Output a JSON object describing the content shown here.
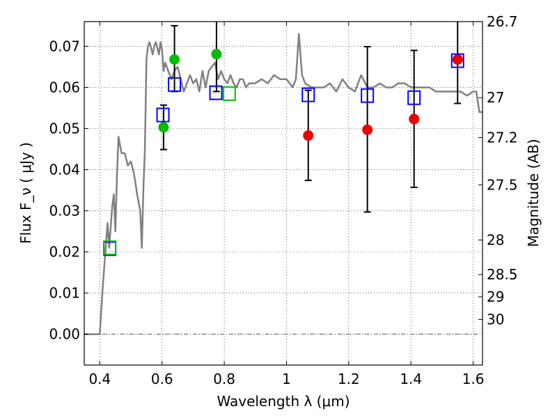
{
  "chart_data": {
    "type": "scatter",
    "xlabel": "Wavelength  λ (μm)",
    "ylabel": "Flux  F_ν  ( μJy )",
    "ylabel_right": "Magnitude (AB)",
    "xlim": [
      0.35,
      1.63
    ],
    "ylim": [
      -0.0075,
      0.076
    ],
    "grid": true,
    "x_ticks": [
      0.4,
      0.6,
      0.8,
      1.0,
      1.2,
      1.4,
      1.6
    ],
    "x_tick_labels": [
      "0.4",
      "0.6",
      "0.8",
      "1",
      "1.2",
      "1.4",
      "1.6"
    ],
    "y_ticks": [
      0.0,
      0.01,
      0.02,
      0.03,
      0.04,
      0.05,
      0.06,
      0.07
    ],
    "y_tick_labels": [
      "0.00",
      "0.01",
      "0.02",
      "0.03",
      "0.04",
      "0.05",
      "0.06",
      "0.07"
    ],
    "right_ticks": [
      {
        "label": "26.7",
        "flux": 0.076
      },
      {
        "label": "27",
        "flux": 0.0575
      },
      {
        "label": "27.2",
        "flux": 0.0478
      },
      {
        "label": "27.5",
        "flux": 0.0363
      },
      {
        "label": "28",
        "flux": 0.0229
      },
      {
        "label": "28.5",
        "flux": 0.0145
      },
      {
        "label": "29",
        "flux": 0.0091
      },
      {
        "label": "30",
        "flux": 0.0036
      }
    ],
    "colors": {
      "model": "#808080",
      "model_points": "#0000ff",
      "green_points": "#00bb00",
      "red_points": "#ee0000",
      "green_squares": "#00bb00",
      "errorbars": "#000000",
      "zero_line": "#555555"
    },
    "series": [
      {
        "kind": "line",
        "x": [
          0.35,
          0.4,
          0.41,
          0.42,
          0.425,
          0.43,
          0.44,
          0.445,
          0.45,
          0.455,
          0.46,
          0.465,
          0.47,
          0.48,
          0.49,
          0.5,
          0.51,
          0.52,
          0.53,
          0.535,
          0.54,
          0.545,
          0.55,
          0.555,
          0.56,
          0.57,
          0.575,
          0.58,
          0.59,
          0.595,
          0.6,
          0.605,
          0.61,
          0.62,
          0.63,
          0.64,
          0.65,
          0.66,
          0.67,
          0.68,
          0.69,
          0.7,
          0.71,
          0.72,
          0.73,
          0.74,
          0.75,
          0.76,
          0.77,
          0.78,
          0.79,
          0.8,
          0.81,
          0.82,
          0.83,
          0.84,
          0.85,
          0.86,
          0.87,
          0.88,
          0.9,
          0.92,
          0.94,
          0.96,
          0.98,
          1.0,
          1.02,
          1.03,
          1.04,
          1.05,
          1.06,
          1.08,
          1.1,
          1.12,
          1.14,
          1.16,
          1.18,
          1.2,
          1.22,
          1.24,
          1.26,
          1.28,
          1.3,
          1.32,
          1.34,
          1.36,
          1.38,
          1.4,
          1.42,
          1.44,
          1.46,
          1.48,
          1.5,
          1.52,
          1.54,
          1.56,
          1.58,
          1.6,
          1.61,
          1.62,
          1.63
        ],
        "y": [
          0.0,
          0.0,
          0.012,
          0.022,
          0.027,
          0.021,
          0.031,
          0.034,
          0.025,
          0.038,
          0.048,
          0.046,
          0.044,
          0.044,
          0.041,
          0.042,
          0.039,
          0.034,
          0.03,
          0.021,
          0.035,
          0.045,
          0.067,
          0.07,
          0.071,
          0.068,
          0.07,
          0.071,
          0.068,
          0.071,
          0.069,
          0.064,
          0.066,
          0.064,
          0.062,
          0.064,
          0.065,
          0.062,
          0.059,
          0.061,
          0.063,
          0.061,
          0.062,
          0.059,
          0.064,
          0.06,
          0.064,
          0.065,
          0.066,
          0.062,
          0.064,
          0.062,
          0.061,
          0.063,
          0.061,
          0.06,
          0.062,
          0.062,
          0.06,
          0.061,
          0.061,
          0.062,
          0.061,
          0.063,
          0.062,
          0.062,
          0.06,
          0.062,
          0.073,
          0.063,
          0.061,
          0.06,
          0.06,
          0.06,
          0.061,
          0.059,
          0.062,
          0.06,
          0.059,
          0.063,
          0.06,
          0.06,
          0.061,
          0.06,
          0.06,
          0.061,
          0.061,
          0.06,
          0.06,
          0.06,
          0.06,
          0.059,
          0.059,
          0.059,
          0.059,
          0.059,
          0.058,
          0.059,
          0.059,
          0.054,
          0.054
        ]
      },
      {
        "kind": "open-square",
        "color_key": "model_points",
        "x": [
          0.432,
          0.603,
          0.64,
          0.773,
          1.07,
          1.26,
          1.41,
          1.55
        ],
        "y": [
          0.0208,
          0.0533,
          0.0607,
          0.0587,
          0.0582,
          0.058,
          0.0575,
          0.0665
        ]
      },
      {
        "kind": "open-square",
        "color_key": "green_squares",
        "x": [
          0.432,
          0.816
        ],
        "y": [
          0.021,
          0.0585
        ]
      },
      {
        "kind": "circle",
        "color_key": "green_points",
        "x": [
          0.605,
          0.64,
          0.775
        ],
        "y": [
          0.0503,
          0.0668,
          0.0681
        ]
      },
      {
        "kind": "circle",
        "color_key": "red_points",
        "x": [
          1.07,
          1.26,
          1.41,
          1.55
        ],
        "y": [
          0.0483,
          0.0497,
          0.0523,
          0.0668
        ]
      }
    ],
    "errorbars": [
      {
        "x": 0.605,
        "low": 0.0449,
        "high": 0.0557
      },
      {
        "x": 0.64,
        "low": 0.059,
        "high": 0.075
      },
      {
        "x": 0.775,
        "low": 0.059,
        "high": 0.078
      },
      {
        "x": 1.07,
        "low": 0.0374,
        "high": 0.0593
      },
      {
        "x": 1.26,
        "low": 0.0297,
        "high": 0.0699
      },
      {
        "x": 1.41,
        "low": 0.0357,
        "high": 0.069
      },
      {
        "x": 1.55,
        "low": 0.0561,
        "high": 0.078
      }
    ]
  }
}
